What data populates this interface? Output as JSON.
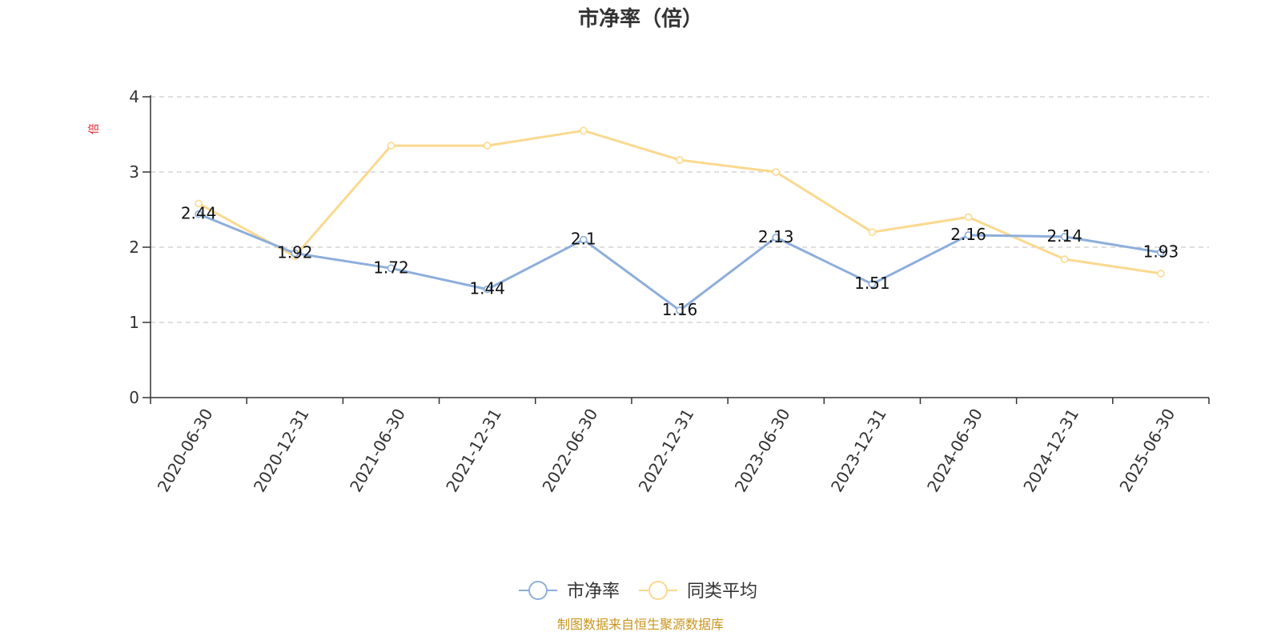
{
  "chart_data": {
    "type": "line",
    "title": "市净率（倍）",
    "ylabel": "倍",
    "xlabel": "",
    "ylim": [
      0,
      4
    ],
    "yticks": [
      0,
      1,
      2,
      3,
      4
    ],
    "grid": true,
    "legend_position": "bottom-center",
    "categories": [
      "2020-06-30",
      "2020-12-31",
      "2021-06-30",
      "2021-12-31",
      "2022-06-30",
      "2022-12-31",
      "2023-06-30",
      "2023-12-31",
      "2024-06-30",
      "2024-12-31",
      "2025-06-30"
    ],
    "series": [
      {
        "name": "市净率",
        "color": "#8eaedb",
        "values": [
          2.44,
          1.92,
          1.72,
          1.44,
          2.1,
          1.16,
          2.13,
          1.51,
          2.16,
          2.14,
          1.93
        ],
        "labels": [
          "2.44",
          "1.92",
          "1.72",
          "1.44",
          "2.1",
          "1.16",
          "2.13",
          "1.51",
          "2.16",
          "2.14",
          "1.93"
        ]
      },
      {
        "name": "同类平均",
        "color": "#fad98f",
        "values": [
          2.58,
          1.88,
          3.35,
          3.35,
          3.55,
          3.16,
          3.0,
          2.2,
          2.4,
          1.84,
          1.65
        ]
      }
    ],
    "source": "制图数据来自恒生聚源数据库"
  }
}
